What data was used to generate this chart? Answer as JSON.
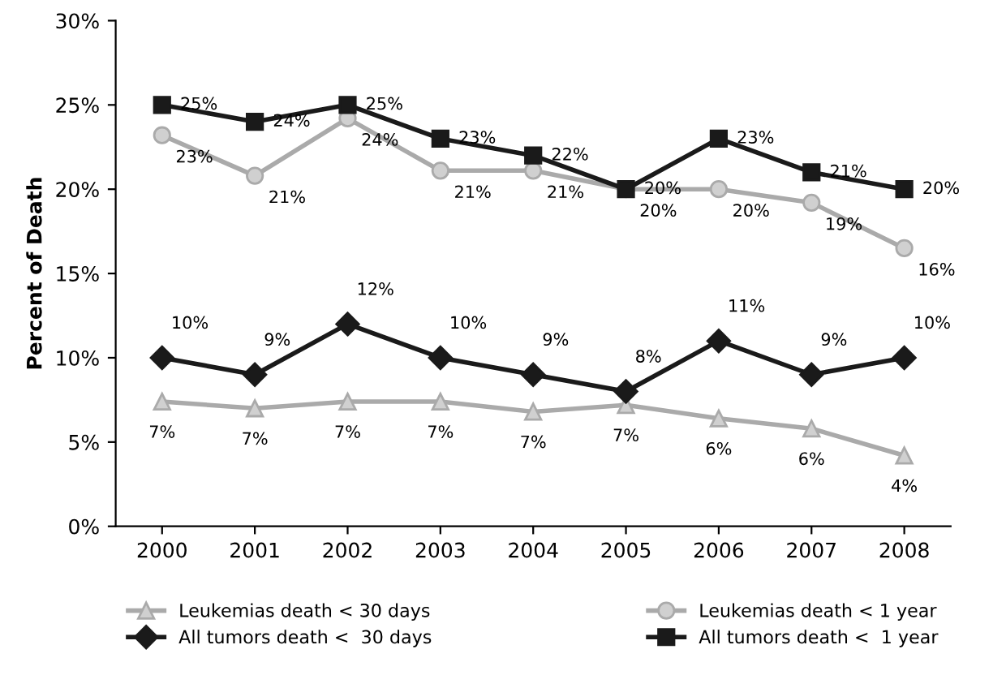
{
  "chart_data": {
    "type": "line",
    "ylabel": "Percent of Death",
    "categories": [
      "2000",
      "2001",
      "2002",
      "2003",
      "2004",
      "2005",
      "2006",
      "2007",
      "2008"
    ],
    "ylim": [
      0,
      30
    ],
    "yticks": [
      {
        "value": 0,
        "label": "0%"
      },
      {
        "value": 5,
        "label": "5%"
      },
      {
        "value": 10,
        "label": "10%"
      },
      {
        "value": 15,
        "label": "15%"
      },
      {
        "value": 20,
        "label": "20%"
      },
      {
        "value": 25,
        "label": "25%"
      },
      {
        "value": 30,
        "label": "30%"
      }
    ],
    "legend": "bottom",
    "grid": false,
    "line_style": "solid",
    "series": [
      {
        "name": "Leukemias death < 30 days",
        "color": "#aaaaaa",
        "marker": "triangle",
        "values": [
          7.4,
          7.0,
          7.4,
          7.4,
          6.8,
          7.2,
          6.4,
          5.8,
          4.2
        ],
        "value_labels": [
          "7%",
          "7%",
          "7%",
          "7%",
          "7%",
          "7%",
          "6%",
          "6%",
          "4%"
        ]
      },
      {
        "name": "Leukemias death < 1 year",
        "color": "#aaaaaa",
        "marker": "circle",
        "values": [
          23.2,
          20.8,
          24.2,
          21.1,
          21.1,
          20.0,
          20.0,
          19.2,
          16.5
        ],
        "value_labels": [
          "23%",
          "21%",
          "24%",
          "21%",
          "21%",
          "20%",
          "20%",
          "19%",
          "16%"
        ]
      },
      {
        "name": "All tumors death <  30 days",
        "color": "#1a1a1a",
        "marker": "diamond",
        "values": [
          10,
          9,
          12,
          10,
          9,
          8,
          11,
          9,
          10
        ],
        "value_labels": [
          "10%",
          "9%",
          "12%",
          "10%",
          "9%",
          "8%",
          "11%",
          "9%",
          "10%"
        ]
      },
      {
        "name": "All tumors death <  1 year",
        "color": "#1a1a1a",
        "marker": "square",
        "values": [
          25,
          24,
          25,
          23,
          22,
          20,
          23,
          21,
          20
        ],
        "value_labels": [
          "25%",
          "24%",
          "25%",
          "23%",
          "22%",
          "20%",
          "23%",
          "21%",
          "20%"
        ]
      }
    ]
  }
}
